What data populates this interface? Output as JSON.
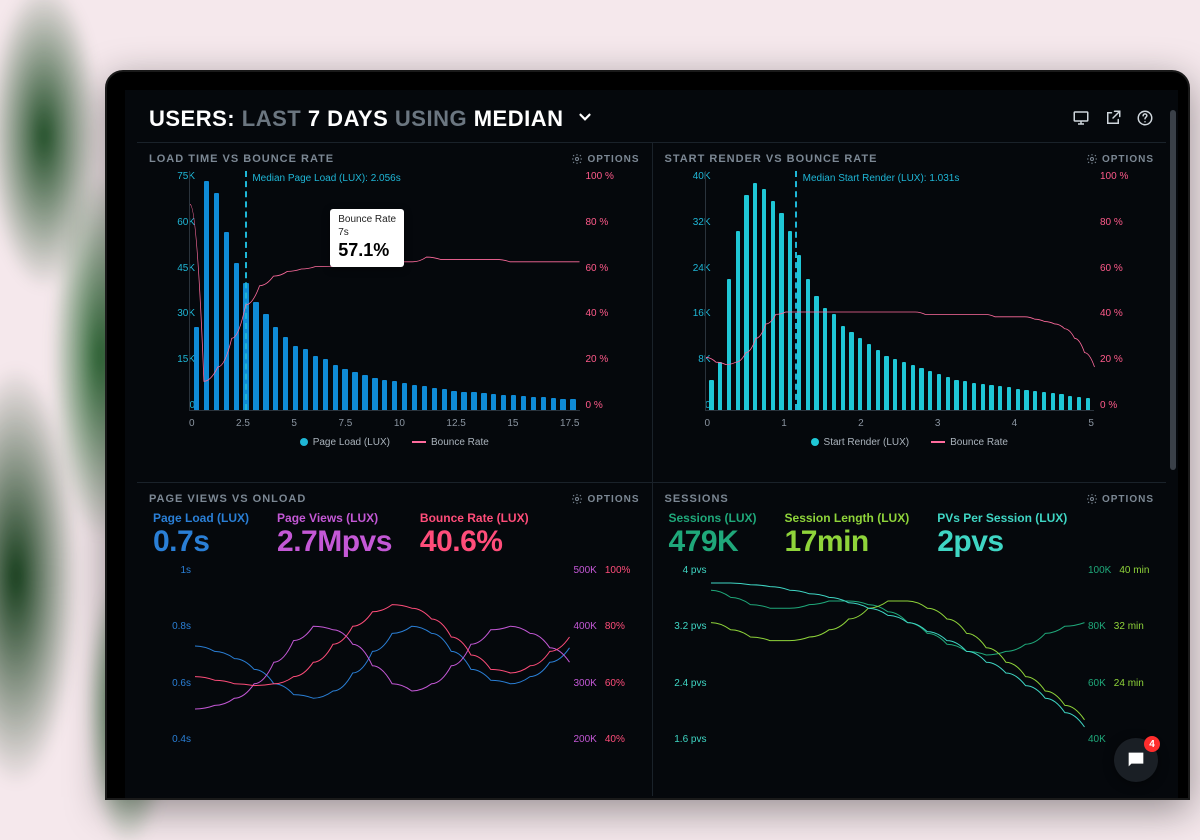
{
  "header": {
    "prefix": "USERS:",
    "dim1": "LAST",
    "bold1": "7 DAYS",
    "dim2": "USING",
    "bold2": "MEDIAN",
    "icons": [
      "monitor-icon",
      "share-icon",
      "help-icon"
    ]
  },
  "options_label": "OPTIONS",
  "panels": {
    "loadtime": {
      "title": "LOAD TIME VS BOUNCE RATE",
      "type": "bar+line",
      "bar_color": "#0f8bd6",
      "line_color": "#ff6b9d",
      "left_axis_color": "#1fb6d6",
      "right_axis_color": "#ff5a8a",
      "background": "#05080c",
      "left_ticks": [
        "75K",
        "60K",
        "45K",
        "30K",
        "15K",
        "0"
      ],
      "right_ticks": [
        "100 %",
        "80 %",
        "60 %",
        "40 %",
        "20 %",
        "0 %"
      ],
      "x_ticks": [
        "0",
        "2.5",
        "5",
        "7.5",
        "10",
        "12.5",
        "15",
        "17.5"
      ],
      "median_pct_x": 14,
      "median_label": "Median Page Load (LUX): 2.056s",
      "tooltip": {
        "line1": "Bounce Rate",
        "line2": "7s",
        "big": "57.1%",
        "left_pct": 36,
        "top_pct": 16
      },
      "bars": [
        26,
        72,
        68,
        56,
        46,
        40,
        34,
        30,
        26,
        23,
        20,
        19,
        17,
        16,
        14,
        13,
        12,
        11,
        10,
        9.5,
        9,
        8.5,
        8,
        7.5,
        7,
        6.5,
        6,
        5.8,
        5.5,
        5.2,
        5,
        4.8,
        4.6,
        4.4,
        4.2,
        4,
        3.8,
        3.6,
        3.4
      ],
      "bar_scale_max": 75,
      "line_points": [
        86,
        12,
        18,
        30,
        44,
        52,
        56,
        58,
        59,
        60,
        60,
        60,
        60,
        61,
        61,
        62,
        62,
        64,
        63,
        63,
        63,
        63,
        63,
        62,
        62,
        62,
        62,
        62,
        62
      ],
      "line_scale_max": 100,
      "legend": [
        {
          "type": "dot",
          "color": "#1fb6d6",
          "label": "Page Load (LUX)"
        },
        {
          "type": "line",
          "color": "#ff6b9d",
          "label": "Bounce Rate"
        }
      ]
    },
    "startrender": {
      "title": "START RENDER VS BOUNCE RATE",
      "type": "bar+line",
      "bar_color": "#1fc7d6",
      "line_color": "#ff6b9d",
      "left_axis_color": "#1fb6d6",
      "right_axis_color": "#ff5a8a",
      "left_ticks": [
        "40K",
        "32K",
        "24K",
        "16K",
        "8K",
        "0"
      ],
      "right_ticks": [
        "100 %",
        "80 %",
        "60 %",
        "40 %",
        "20 %",
        "0 %"
      ],
      "x_ticks": [
        "0",
        "1",
        "2",
        "3",
        "4",
        "5"
      ],
      "median_pct_x": 23,
      "median_label": "Median Start Render (LUX): 1.031s",
      "bars": [
        5,
        8,
        22,
        30,
        36,
        38,
        37,
        35,
        33,
        30,
        26,
        22,
        19,
        17,
        16,
        14,
        13,
        12,
        11,
        10,
        9,
        8.5,
        8,
        7.5,
        7,
        6.5,
        6,
        5.5,
        5,
        4.8,
        4.6,
        4.4,
        4.2,
        4,
        3.8,
        3.6,
        3.4,
        3.2,
        3,
        2.8,
        2.6,
        2.4,
        2.2,
        2
      ],
      "bar_scale_max": 40,
      "line_points": [
        22,
        20,
        19,
        20,
        24,
        30,
        36,
        40,
        41,
        41,
        41,
        41,
        41,
        41,
        41,
        41,
        41,
        41,
        41,
        41,
        41,
        41,
        40,
        40,
        40,
        40,
        40,
        40,
        40,
        39,
        39,
        39,
        39,
        38,
        37,
        36,
        34,
        30,
        24,
        18
      ],
      "line_scale_max": 100,
      "legend": [
        {
          "type": "dot",
          "color": "#1fc7d6",
          "label": "Start Render (LUX)"
        },
        {
          "type": "line",
          "color": "#ff6b9d",
          "label": "Bounce Rate"
        }
      ]
    },
    "pageviews": {
      "title": "PAGE VIEWS VS ONLOAD",
      "metrics": [
        {
          "label": "Page Load (LUX)",
          "value": "0.7s",
          "color": "#2a7fd6"
        },
        {
          "label": "Page Views (LUX)",
          "value": "2.7Mpvs",
          "color": "#c458d6"
        },
        {
          "label": "Bounce Rate (LUX)",
          "value": "40.6%",
          "color": "#ff4d7a"
        }
      ],
      "left_ticks": [
        "1s",
        "0.8s",
        "0.6s",
        "0.4s"
      ],
      "left_color": "#2a7fd6",
      "right_ticks": [
        {
          "a": "500K",
          "b": "100%"
        },
        {
          "a": "400K",
          "b": "80%"
        },
        {
          "a": "300K",
          "b": "60%"
        },
        {
          "a": "200K",
          "b": "40%"
        }
      ],
      "right_color_a": "#c458d6",
      "right_color_b": "#ff4d7a",
      "series": {
        "blue": {
          "color": "#2a7fd6",
          "pts": [
            55,
            52,
            48,
            42,
            34,
            28,
            26,
            30,
            40,
            52,
            62,
            66,
            62,
            52,
            42,
            36,
            34,
            38,
            46,
            54
          ]
        },
        "purple": {
          "color": "#c458d6",
          "pts": [
            20,
            22,
            26,
            34,
            46,
            58,
            66,
            64,
            56,
            44,
            34,
            30,
            34,
            44,
            56,
            64,
            66,
            62,
            54,
            46
          ]
        },
        "pink": {
          "color": "#ff4d7a",
          "pts": [
            38,
            36,
            34,
            33,
            34,
            38,
            46,
            56,
            66,
            74,
            78,
            76,
            70,
            60,
            50,
            42,
            40,
            44,
            52,
            60
          ]
        }
      }
    },
    "sessions": {
      "title": "SESSIONS",
      "metrics": [
        {
          "label": "Sessions (LUX)",
          "value": "479K",
          "color": "#1fa87a"
        },
        {
          "label": "Session Length (LUX)",
          "value": "17min",
          "color": "#8fd43a"
        },
        {
          "label": "PVs Per Session (LUX)",
          "value": "2pvs",
          "color": "#3fd6c4"
        }
      ],
      "left_ticks": [
        "4 pvs",
        "3.2 pvs",
        "2.4 pvs",
        "1.6 pvs"
      ],
      "left_color": "#3fd6c4",
      "right_ticks": [
        {
          "a": "100K",
          "b": "40 min"
        },
        {
          "a": "80K",
          "b": "32 min"
        },
        {
          "a": "60K",
          "b": "24 min"
        },
        {
          "a": "40K",
          "b": ""
        }
      ],
      "right_color_a": "#1fa87a",
      "right_color_b": "#8fd43a",
      "series": {
        "darkgreen": {
          "color": "#1fa87a",
          "pts": [
            86,
            82,
            78,
            76,
            76,
            78,
            80,
            80,
            78,
            74,
            68,
            62,
            56,
            52,
            50,
            52,
            56,
            62,
            66,
            68
          ]
        },
        "lime": {
          "color": "#8fd43a",
          "pts": [
            68,
            64,
            60,
            58,
            58,
            60,
            64,
            70,
            76,
            80,
            80,
            76,
            70,
            62,
            54,
            46,
            38,
            30,
            22,
            14
          ]
        },
        "teal": {
          "color": "#3fd6c4",
          "pts": [
            90,
            90,
            89,
            88,
            86,
            84,
            82,
            79,
            76,
            72,
            68,
            63,
            58,
            52,
            46,
            40,
            33,
            26,
            18,
            10
          ]
        }
      }
    }
  },
  "chat_badge": "4"
}
